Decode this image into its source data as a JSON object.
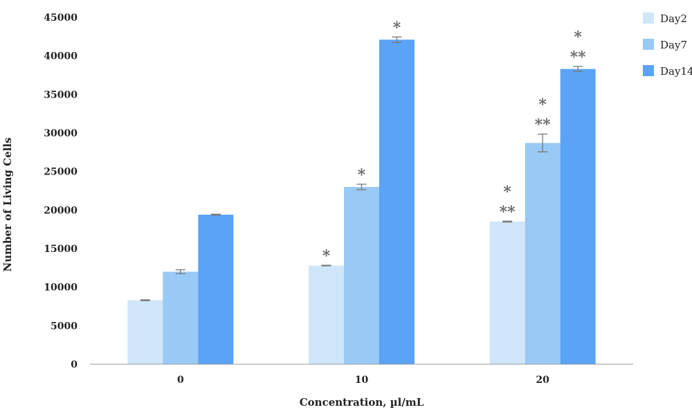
{
  "chart_data": {
    "type": "bar",
    "title": "",
    "xlabel": "Concentration, µl/mL",
    "ylabel": "Number of Living Cells",
    "categories": [
      "0",
      "10",
      "20"
    ],
    "ylim": [
      0,
      45000
    ],
    "yticks": [
      0,
      5000,
      10000,
      15000,
      20000,
      25000,
      30000,
      35000,
      40000,
      45000
    ],
    "grid": false,
    "legend_position": "top-right",
    "series": [
      {
        "name": "Day2",
        "color": "#cfe6fa",
        "values": [
          8300,
          12800,
          18500
        ],
        "errors": [
          60,
          40,
          60
        ],
        "marks": [
          [],
          [
            "*"
          ],
          [
            "**",
            "*"
          ]
        ]
      },
      {
        "name": "Day7",
        "color": "#99c9f5",
        "values": [
          12000,
          23000,
          28700
        ],
        "errors": [
          250,
          350,
          1150
        ],
        "marks": [
          [],
          [
            "*"
          ],
          [
            "**",
            "*"
          ]
        ]
      },
      {
        "name": "Day14",
        "color": "#5aa3f5",
        "values": [
          19400,
          42100,
          38300
        ],
        "errors": [
          60,
          350,
          320
        ],
        "marks": [
          [],
          [
            "*"
          ],
          [
            "**",
            "*"
          ]
        ]
      }
    ]
  }
}
